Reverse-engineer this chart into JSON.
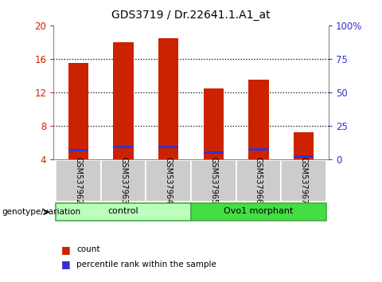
{
  "title": "GDS3719 / Dr.22641.1.A1_at",
  "samples": [
    "GSM537962",
    "GSM537963",
    "GSM537964",
    "GSM537965",
    "GSM537966",
    "GSM537967"
  ],
  "count_values": [
    15.5,
    18.0,
    18.5,
    12.5,
    13.5,
    7.2
  ],
  "percentile_values": [
    5.1,
    5.5,
    5.5,
    4.8,
    5.2,
    4.3
  ],
  "bar_bottom": 4.0,
  "ylim_left": [
    4,
    20
  ],
  "ylim_right": [
    0,
    100
  ],
  "yticks_left": [
    4,
    8,
    12,
    16,
    20
  ],
  "yticks_right": [
    0,
    25,
    50,
    75,
    100
  ],
  "ytick_labels_left": [
    "4",
    "8",
    "12",
    "16",
    "20"
  ],
  "ytick_labels_right": [
    "0",
    "25",
    "50",
    "75",
    "100%"
  ],
  "bar_color": "#cc2200",
  "blue_color": "#3333cc",
  "groups": [
    {
      "label": "control",
      "indices": [
        0,
        1,
        2
      ],
      "facecolor": "#bbffbb",
      "edgecolor": "#44aa44"
    },
    {
      "label": "Ovo1 morphant",
      "indices": [
        3,
        4,
        5
      ],
      "facecolor": "#44dd44",
      "edgecolor": "#44aa44"
    }
  ],
  "group_label_prefix": "genotype/variation",
  "bar_width": 0.45,
  "plot_bg_color": "#ffffff",
  "sample_box_color": "#cccccc",
  "left_tick_color": "#cc2200",
  "right_tick_color": "#3333cc",
  "legend_items": [
    "count",
    "percentile rank within the sample"
  ],
  "figsize": [
    4.8,
    3.54
  ],
  "dpi": 100
}
